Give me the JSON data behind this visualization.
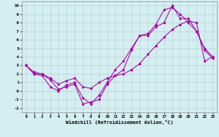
{
  "title": "",
  "xlabel": "Windchill (Refroidissement éolien,°C)",
  "ylabel": "",
  "background_color": "#d5eef0",
  "line_color": "#aa00aa",
  "ylim": [
    -2.5,
    10.5
  ],
  "xlim": [
    -0.5,
    23.5
  ],
  "yticks": [
    -2,
    -1,
    0,
    1,
    2,
    3,
    4,
    5,
    6,
    7,
    8,
    9,
    10
  ],
  "xticks": [
    0,
    1,
    2,
    3,
    4,
    5,
    6,
    7,
    8,
    9,
    10,
    11,
    12,
    13,
    14,
    15,
    16,
    17,
    18,
    19,
    20,
    21,
    22,
    23
  ],
  "series1_x": [
    0,
    1,
    2,
    3,
    4,
    5,
    6,
    7,
    8,
    9,
    10,
    11,
    12,
    13,
    14,
    15,
    16,
    17,
    18,
    19,
    20,
    21,
    22,
    23
  ],
  "series1_y": [
    3.0,
    2.2,
    2.0,
    1.3,
    0.2,
    0.5,
    0.8,
    -1.5,
    -1.3,
    -1.0,
    0.8,
    1.8,
    2.5,
    4.8,
    6.5,
    6.5,
    7.5,
    8.0,
    10.0,
    8.5,
    8.5,
    7.0,
    5.0,
    4.0
  ],
  "series2_x": [
    0,
    1,
    2,
    3,
    4,
    5,
    6,
    7,
    8,
    9,
    10,
    11,
    12,
    13,
    14,
    15,
    16,
    17,
    18,
    19,
    20,
    21,
    22,
    23
  ],
  "series2_y": [
    3.0,
    2.0,
    1.8,
    0.5,
    0.0,
    0.7,
    1.0,
    -0.8,
    -1.5,
    -0.5,
    1.0,
    2.5,
    3.5,
    5.0,
    6.5,
    6.7,
    7.8,
    9.5,
    9.8,
    9.0,
    8.0,
    7.0,
    4.8,
    3.8
  ],
  "series3_x": [
    0,
    1,
    2,
    3,
    4,
    5,
    6,
    7,
    8,
    9,
    10,
    11,
    12,
    13,
    14,
    15,
    16,
    17,
    18,
    19,
    20,
    21,
    22,
    23
  ],
  "series3_y": [
    3.0,
    2.0,
    2.0,
    1.5,
    0.8,
    1.2,
    1.5,
    0.5,
    0.3,
    1.0,
    1.5,
    1.8,
    2.0,
    2.5,
    3.2,
    4.3,
    5.3,
    6.3,
    7.2,
    7.8,
    8.2,
    8.0,
    3.5,
    4.0
  ]
}
